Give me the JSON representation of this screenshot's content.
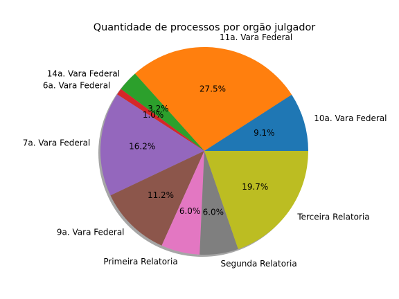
{
  "chart_data": {
    "type": "pie",
    "title": "Quantidade de processos por orgão julgador",
    "shadow": true,
    "start_angle_deg": 0,
    "direction": "counterclockwise",
    "slices": [
      {
        "label": "10a. Vara Federal",
        "value": 9.1,
        "pct_label": "9.1%",
        "color": "#1f77b4"
      },
      {
        "label": "11a. Vara Federal",
        "value": 27.5,
        "pct_label": "27.5%",
        "color": "#ff7f0e"
      },
      {
        "label": "14a. Vara Federal",
        "value": 3.2,
        "pct_label": "3.2%",
        "color": "#2ca02c"
      },
      {
        "label": "6a. Vara Federal",
        "value": 1.0,
        "pct_label": "1.0%",
        "color": "#d62728"
      },
      {
        "label": "7a. Vara Federal",
        "value": 16.2,
        "pct_label": "16.2%",
        "color": "#9467bd"
      },
      {
        "label": "9a. Vara Federal",
        "value": 11.2,
        "pct_label": "11.2%",
        "color": "#8c564b"
      },
      {
        "label": "Primeira Relatoria",
        "value": 6.0,
        "pct_label": "6.0%",
        "color": "#e377c2"
      },
      {
        "label": "Segunda Relatoria",
        "value": 6.0,
        "pct_label": "6.0%",
        "color": "#7f7f7f"
      },
      {
        "label": "Terceira Relatoria",
        "value": 19.7,
        "pct_label": "19.7%",
        "color": "#bcbd22"
      }
    ]
  }
}
